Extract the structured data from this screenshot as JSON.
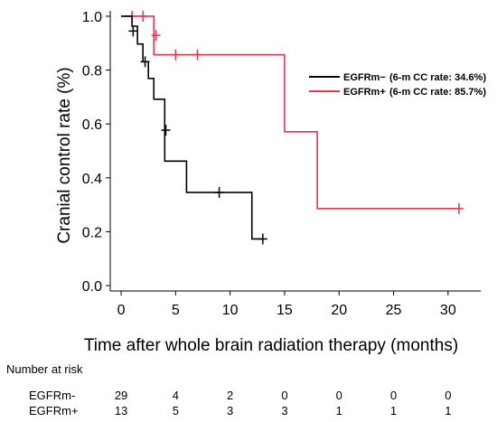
{
  "chart_data": {
    "type": "line",
    "step": true,
    "xlabel": "Time after whole brain radiation therapy (months)",
    "ylabel": "Cranial control rate (%)",
    "xlim": [
      -1,
      33
    ],
    "ylim": [
      -0.02,
      1.02
    ],
    "xticks": [
      0,
      5,
      10,
      15,
      20,
      25,
      30
    ],
    "yticks": [
      0.0,
      0.2,
      0.4,
      0.6,
      0.8,
      1.0
    ],
    "xtick_labels": [
      "0",
      "5",
      "10",
      "15",
      "20",
      "25",
      "30"
    ],
    "ytick_labels": [
      "0.0",
      "0.2",
      "0.4",
      "0.6",
      "0.8",
      "1.0"
    ],
    "legend_position": "right",
    "series": [
      {
        "name": "EGFRm− (6-m CC rate: 34.6%)",
        "legend_label": "EGFRm−",
        "legend_note": "(6-m CC rate: 34.6%)",
        "color": "#000000",
        "x": [
          0,
          1,
          1.5,
          2,
          2.5,
          3,
          4,
          6,
          12,
          13
        ],
        "y": [
          1.0,
          0.963,
          0.897,
          0.831,
          0.769,
          0.692,
          0.577,
          0.462,
          0.346,
          0.173
        ],
        "step_x": [
          0,
          1,
          1.5,
          2,
          2.5,
          3,
          4,
          4,
          6,
          12,
          13
        ],
        "step_y": [
          1.0,
          0.963,
          0.897,
          0.831,
          0.769,
          0.692,
          0.577,
          0.462,
          0.346,
          0.173,
          0.173
        ],
        "censor_x": [
          1.1,
          2.2,
          4.1,
          9.0,
          13.0
        ],
        "censor_y": [
          0.945,
          0.831,
          0.577,
          0.346,
          0.173
        ]
      },
      {
        "name": "EGFRm+ (6-m CC rate: 85.7%)",
        "legend_label": "EGFRm+",
        "legend_note": "(6-m CC rate: 85.7%)",
        "color": "#e8334a",
        "step_x": [
          0,
          3,
          15,
          18,
          31
        ],
        "step_y": [
          1.0,
          0.857,
          0.571,
          0.286,
          0.286
        ],
        "censor_x": [
          1.0,
          2.0,
          3.2,
          5.0,
          7.0,
          31.0
        ],
        "censor_y": [
          1.0,
          1.0,
          0.929,
          0.857,
          0.857,
          0.286
        ]
      }
    ],
    "risk_table": {
      "title": "Number at risk",
      "times": [
        0,
        5,
        10,
        15,
        20,
        25,
        30
      ],
      "rows": [
        {
          "label": "EGFRm-",
          "values": [
            "29",
            "4",
            "2",
            "0",
            "0",
            "0",
            "0"
          ]
        },
        {
          "label": "EGFRm+",
          "values": [
            "13",
            "5",
            "3",
            "3",
            "1",
            "1",
            "1"
          ]
        }
      ]
    }
  }
}
